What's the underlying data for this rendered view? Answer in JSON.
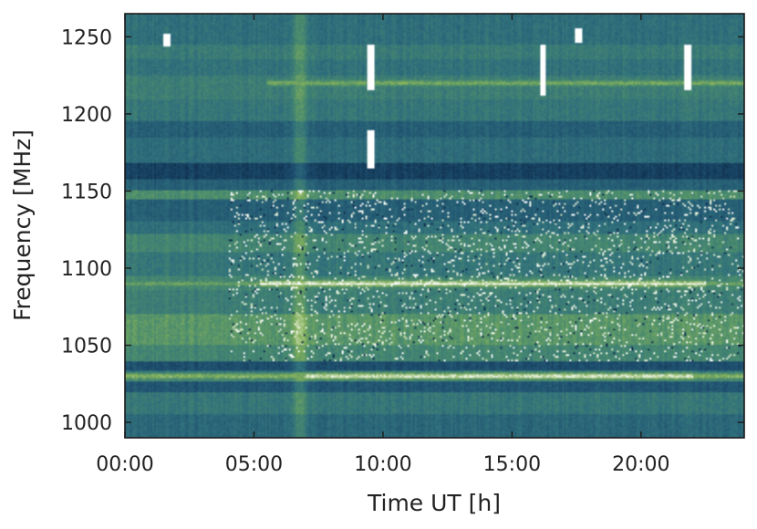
{
  "chart_data": {
    "type": "heatmap",
    "title": "",
    "xlabel": "Time UT [h]",
    "ylabel": "Frequency [MHz]",
    "xlim": [
      0,
      24
    ],
    "ylim": [
      990,
      1265
    ],
    "x_ticks": [
      {
        "value": 0,
        "label": "00:00"
      },
      {
        "value": 5,
        "label": "05:00"
      },
      {
        "value": 10,
        "label": "10:00"
      },
      {
        "value": 15,
        "label": "15:00"
      },
      {
        "value": 20,
        "label": "20:00"
      }
    ],
    "y_ticks": [
      {
        "value": 1000,
        "label": "1000"
      },
      {
        "value": 1050,
        "label": "1050"
      },
      {
        "value": 1100,
        "label": "1100"
      },
      {
        "value": 1150,
        "label": "1150"
      },
      {
        "value": 1200,
        "label": "1200"
      },
      {
        "value": 1250,
        "label": "1250"
      }
    ],
    "colormap": [
      "#0d2c4a",
      "#1e4e6e",
      "#2f6f7c",
      "#4b8c6e",
      "#86b25a",
      "#ffffff"
    ],
    "frequency_bands": [
      {
        "freq_range": [
          990,
          1005
        ],
        "level": 0.35
      },
      {
        "freq_range": [
          1005,
          1020
        ],
        "level": 0.45
      },
      {
        "freq_range": [
          1020,
          1027
        ],
        "level": 0.25
      },
      {
        "freq_range": [
          1027,
          1033
        ],
        "level": 0.55
      },
      {
        "freq_range": [
          1033,
          1040
        ],
        "level": 0.2
      },
      {
        "freq_range": [
          1040,
          1050
        ],
        "level": 0.55
      },
      {
        "freq_range": [
          1050,
          1070
        ],
        "level": 0.65
      },
      {
        "freq_range": [
          1070,
          1086
        ],
        "level": 0.5
      },
      {
        "freq_range": [
          1086,
          1095
        ],
        "level": 0.55
      },
      {
        "freq_range": [
          1095,
          1110
        ],
        "level": 0.45
      },
      {
        "freq_range": [
          1110,
          1122
        ],
        "level": 0.55
      },
      {
        "freq_range": [
          1122,
          1130
        ],
        "level": 0.4
      },
      {
        "freq_range": [
          1130,
          1145
        ],
        "level": 0.3
      },
      {
        "freq_range": [
          1145,
          1150
        ],
        "level": 0.6
      },
      {
        "freq_range": [
          1150,
          1158
        ],
        "level": 0.3
      },
      {
        "freq_range": [
          1158,
          1168
        ],
        "level": 0.12
      },
      {
        "freq_range": [
          1168,
          1185
        ],
        "level": 0.38
      },
      {
        "freq_range": [
          1185,
          1195
        ],
        "level": 0.3
      },
      {
        "freq_range": [
          1195,
          1210
        ],
        "level": 0.45
      },
      {
        "freq_range": [
          1210,
          1225
        ],
        "level": 0.5
      },
      {
        "freq_range": [
          1225,
          1235
        ],
        "level": 0.42
      },
      {
        "freq_range": [
          1235,
          1245
        ],
        "level": 0.48
      },
      {
        "freq_range": [
          1245,
          1265
        ],
        "level": 0.4
      }
    ],
    "rfi_lines": [
      {
        "freq": 1090,
        "time_range": [
          0,
          24
        ],
        "intensity": 0.75
      },
      {
        "freq": 1090,
        "time_range": [
          5.2,
          22.5
        ],
        "intensity": 1.0
      },
      {
        "freq": 1030,
        "time_range": [
          0,
          24
        ],
        "intensity": 0.85
      },
      {
        "freq": 1030,
        "time_range": [
          7.0,
          22.0
        ],
        "intensity": 1.0
      },
      {
        "freq": 1220,
        "time_range": [
          5.5,
          24
        ],
        "intensity": 0.8
      }
    ],
    "rfi_bursts": [
      {
        "time": 1.6,
        "freq_range": [
          1244,
          1252
        ]
      },
      {
        "time": 9.5,
        "freq_range": [
          1215,
          1245
        ]
      },
      {
        "time": 9.5,
        "freq_range": [
          1165,
          1190
        ]
      },
      {
        "time": 16.2,
        "freq_range": [
          1212,
          1245
        ]
      },
      {
        "time": 17.6,
        "freq_range": [
          1246,
          1255
        ]
      },
      {
        "time": 21.8,
        "freq_range": [
          1215,
          1245
        ]
      }
    ],
    "rfi_scatter": [
      {
        "time_range": [
          4.0,
          24
        ],
        "freq_range": [
          1040,
          1150
        ],
        "density": 0.55
      }
    ],
    "enhancement": {
      "time": 6.8,
      "freq_range": [
        990,
        1265
      ],
      "level": 0.7
    }
  }
}
